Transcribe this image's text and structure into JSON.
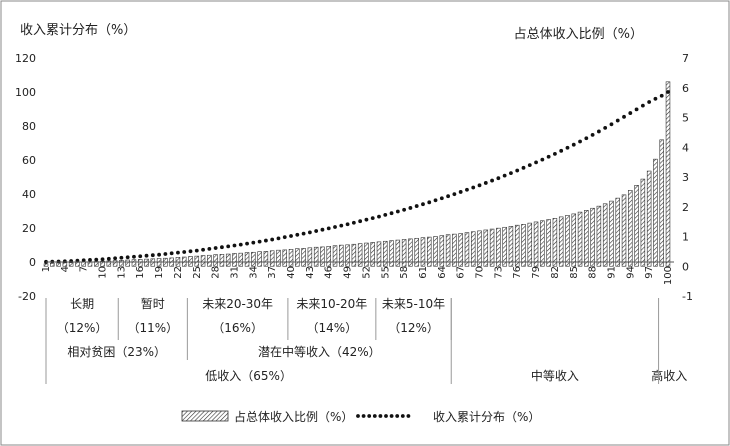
{
  "chart_data": {
    "type": "bar",
    "y_left_title": "收入累计分布（%）",
    "y_right_title": "占总体收入比例（%）",
    "y_left_ticks": [
      "120",
      "100",
      "80",
      "60",
      "40",
      "20",
      "0",
      "-20"
    ],
    "y_right_ticks": [
      "7",
      "6",
      "5",
      "4",
      "3",
      "2",
      "1",
      "0",
      "-1"
    ],
    "ylim_left": [
      -20,
      120
    ],
    "ylim_right": [
      -1,
      7
    ],
    "x_ticks": [
      "1",
      "4",
      "7",
      "10",
      "13",
      "16",
      "19",
      "22",
      "25",
      "28",
      "31",
      "34",
      "37",
      "40",
      "43",
      "46",
      "49",
      "52",
      "55",
      "58",
      "61",
      "64",
      "67",
      "70",
      "73",
      "76",
      "79",
      "82",
      "85",
      "88",
      "91",
      "94",
      "97",
      "100"
    ],
    "x_range": [
      1,
      100
    ],
    "series": [
      {
        "name": "占总体收入比例（%）",
        "kind": "bar",
        "axis": "right",
        "x_start": 1,
        "values": [
          0.08,
          0.1,
          0.11,
          0.12,
          0.12,
          0.13,
          0.14,
          0.15,
          0.16,
          0.17,
          0.18,
          0.19,
          0.2,
          0.21,
          0.22,
          0.23,
          0.24,
          0.25,
          0.26,
          0.27,
          0.28,
          0.3,
          0.31,
          0.33,
          0.34,
          0.36,
          0.37,
          0.39,
          0.4,
          0.41,
          0.43,
          0.44,
          0.46,
          0.47,
          0.49,
          0.5,
          0.52,
          0.54,
          0.55,
          0.57,
          0.59,
          0.6,
          0.62,
          0.64,
          0.65,
          0.67,
          0.69,
          0.71,
          0.72,
          0.74,
          0.76,
          0.78,
          0.8,
          0.82,
          0.84,
          0.86,
          0.88,
          0.9,
          0.92,
          0.94,
          0.96,
          0.98,
          1.0,
          1.03,
          1.06,
          1.08,
          1.1,
          1.13,
          1.16,
          1.19,
          1.22,
          1.25,
          1.28,
          1.31,
          1.34,
          1.38,
          1.41,
          1.45,
          1.49,
          1.53,
          1.57,
          1.61,
          1.66,
          1.71,
          1.76,
          1.82,
          1.88,
          1.95,
          2.02,
          2.1,
          2.19,
          2.29,
          2.4,
          2.55,
          2.72,
          2.93,
          3.2,
          3.6,
          4.25,
          6.2
        ]
      },
      {
        "name": "收入累计分布（%）",
        "kind": "dotted-line",
        "axis": "left",
        "x_start": 1,
        "values": [
          0.1,
          0.2,
          0.3,
          0.4,
          0.6,
          0.8,
          1.0,
          1.2,
          1.4,
          1.6,
          1.9,
          2.2,
          2.5,
          2.8,
          3.1,
          3.4,
          3.7,
          4.0,
          4.3,
          4.7,
          5.1,
          5.5,
          5.9,
          6.3,
          6.7,
          7.2,
          7.7,
          8.2,
          8.7,
          9.2,
          9.7,
          10.2,
          10.8,
          11.4,
          12.0,
          12.6,
          13.2,
          13.9,
          14.6,
          15.3,
          16.0,
          16.7,
          17.4,
          18.2,
          19.0,
          19.8,
          20.6,
          21.4,
          22.2,
          23.1,
          24.0,
          24.9,
          25.8,
          26.7,
          27.7,
          28.7,
          29.7,
          30.7,
          31.8,
          32.9,
          34.0,
          35.1,
          36.3,
          37.5,
          38.7,
          39.9,
          41.2,
          42.5,
          43.8,
          45.1,
          46.5,
          47.9,
          49.3,
          50.8,
          52.3,
          53.8,
          55.4,
          57.0,
          58.6,
          60.2,
          61.9,
          63.6,
          65.4,
          67.2,
          69.0,
          70.9,
          72.8,
          74.8,
          76.8,
          78.9,
          81.0,
          83.2,
          85.4,
          87.6,
          89.8,
          92.0,
          94.1,
          96.0,
          97.8,
          100.0
        ]
      }
    ],
    "group_row1": [
      {
        "label": "长期",
        "pct": "（12%）",
        "from": 1,
        "to": 12
      },
      {
        "label": "暂时",
        "pct": "（11%）",
        "from": 13,
        "to": 23
      },
      {
        "label": "未来20-30年",
        "pct": "（16%）",
        "from": 24,
        "to": 39
      },
      {
        "label": "未来10-20年",
        "pct": "（14%）",
        "from": 40,
        "to": 53
      },
      {
        "label": "未来5-10年",
        "pct": "（12%）",
        "from": 54,
        "to": 65
      }
    ],
    "group_row2": [
      {
        "label": "相对贫困（23%）",
        "from": 1,
        "to": 23
      },
      {
        "label": "潜在中等收入（42%）",
        "from": 24,
        "to": 65
      }
    ],
    "group_row3": [
      {
        "label": "低收入（65%）",
        "from": 1,
        "to": 65
      },
      {
        "label": "中等收入",
        "from": 66,
        "to": 98
      },
      {
        "label": "高收入",
        "from": 99,
        "to": 100
      }
    ],
    "legend_position": "bottom",
    "grid": false
  }
}
